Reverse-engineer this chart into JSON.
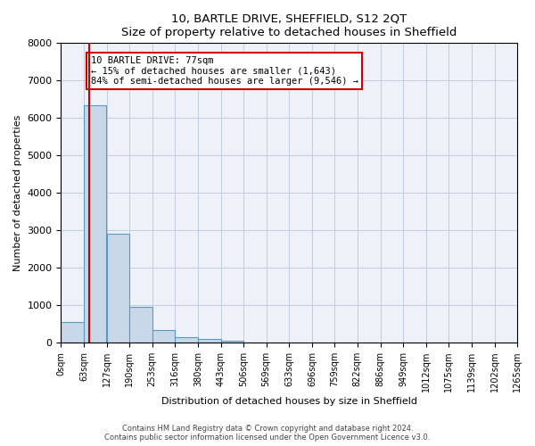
{
  "title": "10, BARTLE DRIVE, SHEFFIELD, S12 2QT",
  "subtitle": "Size of property relative to detached houses in Sheffield",
  "xlabel": "Distribution of detached houses by size in Sheffield",
  "ylabel": "Number of detached properties",
  "bin_labels": [
    "0sqm",
    "63sqm",
    "127sqm",
    "190sqm",
    "253sqm",
    "316sqm",
    "380sqm",
    "443sqm",
    "506sqm",
    "569sqm",
    "633sqm",
    "696sqm",
    "759sqm",
    "822sqm",
    "886sqm",
    "949sqm",
    "1012sqm",
    "1075sqm",
    "1139sqm",
    "1202sqm",
    "1265sqm"
  ],
  "bin_edges": [
    0,
    63,
    127,
    190,
    253,
    316,
    380,
    443,
    506,
    569,
    633,
    696,
    759,
    822,
    886,
    949,
    1012,
    1075,
    1139,
    1202,
    1265
  ],
  "bar_heights": [
    550,
    6350,
    2900,
    960,
    340,
    150,
    90,
    60,
    0,
    0,
    0,
    0,
    0,
    0,
    0,
    0,
    0,
    0,
    0,
    0
  ],
  "bar_color": "#c8d8e8",
  "bar_edge_color": "#5a9ac5",
  "property_size": 77,
  "property_line_color": "#cc0000",
  "annotation_text": "10 BARTLE DRIVE: 77sqm\n← 15% of detached houses are smaller (1,643)\n84% of semi-detached houses are larger (9,546) →",
  "annotation_box_color": "#cc0000",
  "ylim": [
    0,
    8000
  ],
  "yticks": [
    0,
    1000,
    2000,
    3000,
    4000,
    5000,
    6000,
    7000,
    8000
  ],
  "grid_color": "#c0cce0",
  "background_color": "#eef2f8",
  "footer1": "Contains HM Land Registry data © Crown copyright and database right 2024.",
  "footer2": "Contains public sector information licensed under the Open Government Licence v3.0."
}
